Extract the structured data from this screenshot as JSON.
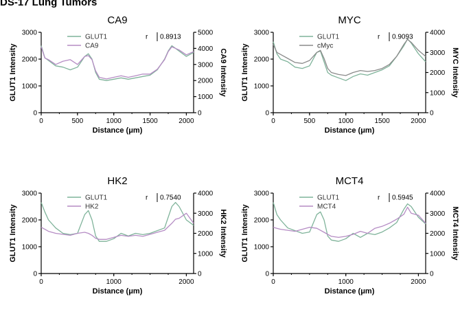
{
  "figure": {
    "title": "DS-17 Lung Tumors"
  },
  "chart_data": [
    {
      "type": "line",
      "title": "CA9",
      "xlabel": "Distance (μm)",
      "ylabel": "GLUT1 Intensity",
      "y2label": "CA9 Intensity",
      "xlim": [
        0,
        2100
      ],
      "ylim": [
        0,
        3000
      ],
      "y2lim": [
        0,
        5000
      ],
      "xticks": [
        "0",
        "500",
        "1000",
        "1500",
        "2000"
      ],
      "xtick_values": [
        0,
        500,
        1000,
        1500,
        2000
      ],
      "yticks": [
        "0",
        "1000",
        "2000",
        "3000"
      ],
      "y2ticks": [
        "0",
        "1000",
        "2000",
        "3000",
        "4000",
        "5000"
      ],
      "r_label": "r",
      "r_value": "0.8913",
      "colors": {
        "primary": "#7fb39a",
        "secondary": "#b58cc4"
      },
      "series": [
        {
          "name": "GLUT1",
          "axis": "left",
          "x": [
            0,
            50,
            100,
            200,
            300,
            400,
            500,
            600,
            650,
            700,
            750,
            800,
            900,
            1000,
            1100,
            1200,
            1300,
            1400,
            1500,
            1600,
            1700,
            1750,
            1800,
            1900,
            2000,
            2100
          ],
          "y": [
            2500,
            2050,
            1950,
            1750,
            1700,
            1600,
            1700,
            2100,
            2200,
            2000,
            1500,
            1250,
            1200,
            1250,
            1300,
            1250,
            1300,
            1350,
            1400,
            1600,
            2000,
            2300,
            2500,
            2300,
            2100,
            2250
          ]
        },
        {
          "name": "CA9",
          "axis": "right",
          "x": [
            0,
            50,
            100,
            200,
            300,
            400,
            500,
            600,
            650,
            700,
            750,
            800,
            900,
            1000,
            1100,
            1200,
            1300,
            1400,
            1500,
            1600,
            1700,
            1750,
            1800,
            1900,
            2000,
            2100
          ],
          "y": [
            4100,
            3400,
            3300,
            3000,
            3200,
            3300,
            3000,
            3500,
            3550,
            3300,
            2600,
            2200,
            2100,
            2200,
            2300,
            2200,
            2300,
            2400,
            2400,
            2700,
            3300,
            3800,
            4100,
            3900,
            3600,
            3800
          ]
        }
      ]
    },
    {
      "type": "line",
      "title": "MYC",
      "xlabel": "Distance (μm)",
      "ylabel": "GLUT1 Intensity",
      "y2label": "MYC Intensity",
      "xlim": [
        0,
        2100
      ],
      "ylim": [
        0,
        3000
      ],
      "y2lim": [
        0,
        4000
      ],
      "xticks": [
        "0",
        "500",
        "1000",
        "1500",
        "2000"
      ],
      "xtick_values": [
        0,
        500,
        1000,
        1500,
        2000
      ],
      "yticks": [
        "0",
        "1000",
        "2000",
        "3000"
      ],
      "y2ticks": [
        "0",
        "1000",
        "2000",
        "3000",
        "4000"
      ],
      "r_label": "r",
      "r_value": "0.9093",
      "colors": {
        "primary": "#7fb39a",
        "secondary": "#8a8a8a"
      },
      "series": [
        {
          "name": "GLUT1",
          "axis": "left",
          "x": [
            0,
            50,
            100,
            200,
            300,
            400,
            500,
            600,
            650,
            700,
            750,
            800,
            900,
            1000,
            1100,
            1200,
            1300,
            1400,
            1500,
            1600,
            1700,
            1800,
            1850,
            1900,
            2000,
            2100
          ],
          "y": [
            2650,
            2200,
            2000,
            1900,
            1700,
            1650,
            1750,
            2250,
            2300,
            1900,
            1500,
            1400,
            1300,
            1200,
            1350,
            1450,
            1400,
            1500,
            1600,
            1750,
            2100,
            2500,
            2750,
            2600,
            2200,
            1900
          ]
        },
        {
          "name": "cMyc",
          "axis": "right",
          "x": [
            0,
            50,
            100,
            200,
            300,
            400,
            500,
            600,
            650,
            700,
            750,
            800,
            900,
            1000,
            1100,
            1200,
            1300,
            1400,
            1500,
            1600,
            1700,
            1800,
            1850,
            1900,
            2000,
            2100
          ],
          "y": [
            3400,
            3000,
            2900,
            2700,
            2500,
            2450,
            2600,
            3000,
            3100,
            2700,
            2200,
            2000,
            1900,
            1850,
            2000,
            2100,
            2050,
            2100,
            2200,
            2400,
            2800,
            3400,
            3650,
            3500,
            3100,
            2800
          ]
        }
      ]
    },
    {
      "type": "line",
      "title": "HK2",
      "xlabel": "Distance (μm)",
      "ylabel": "GLUT1 Intensity",
      "y2label": "HK2 Intensity",
      "xlim": [
        0,
        2100
      ],
      "ylim": [
        0,
        3000
      ],
      "y2lim": [
        0,
        4000
      ],
      "xticks": [
        "0",
        "1000",
        "2000"
      ],
      "xtick_values": [
        0,
        1000,
        2000
      ],
      "yticks": [
        "0",
        "1000",
        "2000",
        "3000"
      ],
      "y2ticks": [
        "0",
        "1000",
        "2000",
        "3000",
        "4000"
      ],
      "r_label": "r",
      "r_value": "0.7540",
      "colors": {
        "primary": "#7fb39a",
        "secondary": "#b58cc4"
      },
      "series": [
        {
          "name": "GLUT1",
          "axis": "left",
          "x": [
            0,
            50,
            100,
            200,
            300,
            400,
            500,
            600,
            650,
            700,
            750,
            800,
            900,
            1000,
            1100,
            1200,
            1300,
            1400,
            1500,
            1600,
            1700,
            1800,
            1850,
            1900,
            2000,
            2100
          ],
          "y": [
            2650,
            2300,
            2000,
            1700,
            1500,
            1450,
            1500,
            2200,
            2350,
            2000,
            1400,
            1200,
            1200,
            1300,
            1500,
            1400,
            1500,
            1450,
            1500,
            1600,
            1700,
            2500,
            2650,
            2500,
            2000,
            1800
          ]
        },
        {
          "name": "HK2",
          "axis": "right",
          "x": [
            0,
            50,
            100,
            200,
            300,
            400,
            500,
            600,
            650,
            700,
            750,
            800,
            900,
            1000,
            1100,
            1200,
            1300,
            1400,
            1500,
            1600,
            1700,
            1800,
            1850,
            1900,
            2000,
            2100
          ],
          "y": [
            2300,
            2200,
            2100,
            2000,
            1950,
            1900,
            2000,
            2050,
            2000,
            1900,
            1750,
            1700,
            1700,
            1800,
            1900,
            1850,
            1900,
            1850,
            1950,
            2050,
            2150,
            2500,
            2700,
            2750,
            3000,
            2500
          ]
        }
      ]
    },
    {
      "type": "line",
      "title": "MCT4",
      "xlabel": "Distance (μm)",
      "ylabel": "GLUT1 Intensity",
      "y2label": "MCT4 Intensity",
      "xlim": [
        0,
        2100
      ],
      "ylim": [
        0,
        3000
      ],
      "y2lim": [
        0,
        4000
      ],
      "xticks": [
        "0",
        "1000",
        "2000"
      ],
      "xtick_values": [
        0,
        1000,
        2000
      ],
      "yticks": [
        "0",
        "1000",
        "2000",
        "3000"
      ],
      "y2ticks": [
        "0",
        "1000",
        "2000",
        "3000",
        "4000"
      ],
      "r_label": "r",
      "r_value": "0.5945",
      "colors": {
        "primary": "#7fb39a",
        "secondary": "#b58cc4"
      },
      "series": [
        {
          "name": "GLUT1",
          "axis": "left",
          "x": [
            0,
            50,
            100,
            200,
            300,
            400,
            500,
            600,
            650,
            700,
            750,
            800,
            900,
            1000,
            1100,
            1200,
            1300,
            1400,
            1500,
            1600,
            1700,
            1800,
            1850,
            1900,
            2000,
            2100
          ],
          "y": [
            2650,
            2200,
            2000,
            1700,
            1600,
            1500,
            1550,
            2200,
            2300,
            2000,
            1400,
            1250,
            1200,
            1300,
            1500,
            1350,
            1500,
            1450,
            1550,
            1700,
            1900,
            2400,
            2600,
            2500,
            2100,
            1850
          ]
        },
        {
          "name": "MCT4",
          "axis": "right",
          "x": [
            0,
            50,
            100,
            200,
            300,
            400,
            500,
            600,
            650,
            700,
            750,
            800,
            900,
            1000,
            1100,
            1200,
            1300,
            1400,
            1500,
            1600,
            1700,
            1800,
            1850,
            1900,
            2000,
            2100
          ],
          "y": [
            2300,
            2250,
            2200,
            2150,
            2100,
            2200,
            2300,
            2250,
            2150,
            2050,
            1950,
            1850,
            1800,
            1850,
            1950,
            2100,
            2000,
            2250,
            2350,
            2500,
            2700,
            2950,
            3300,
            3000,
            2900,
            2500
          ]
        }
      ]
    }
  ]
}
